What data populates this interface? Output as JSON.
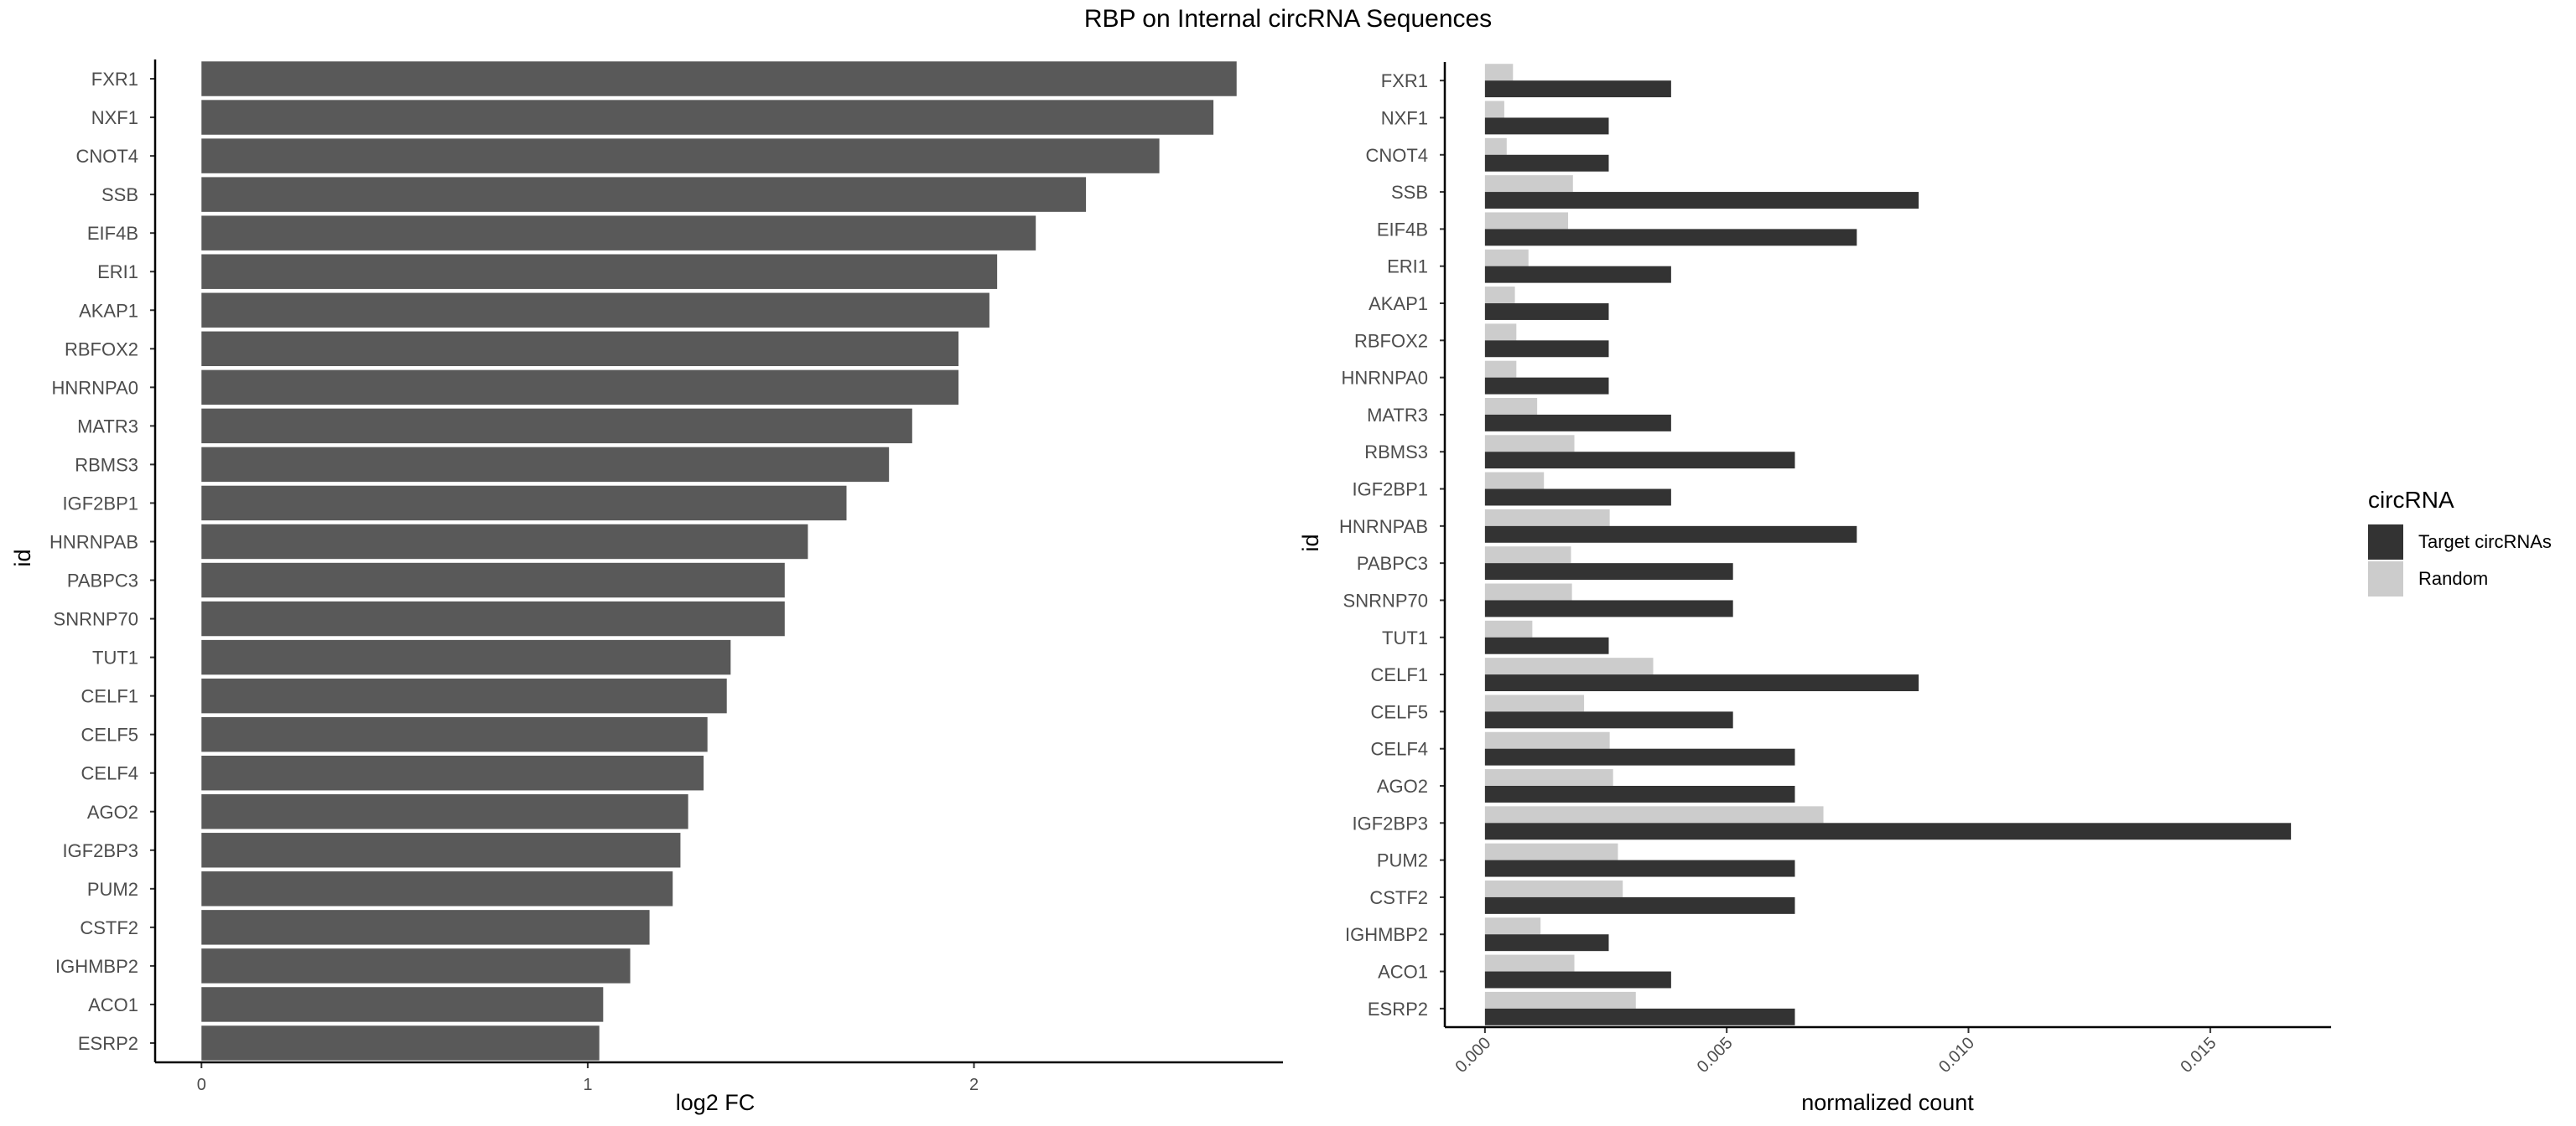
{
  "title": "RBP on Internal circRNA Sequences",
  "chart_data": [
    {
      "type": "bar",
      "orientation": "horizontal",
      "categories": [
        "FXR1",
        "NXF1",
        "CNOT4",
        "SSB",
        "EIF4B",
        "ERI1",
        "AKAP1",
        "RBFOX2",
        "HNRNPA0",
        "MATR3",
        "RBMS3",
        "IGF2BP1",
        "HNRNPAB",
        "PABPC3",
        "SNRNP70",
        "TUT1",
        "CELF1",
        "CELF5",
        "CELF4",
        "AGO2",
        "IGF2BP3",
        "PUM2",
        "CSTF2",
        "IGHMBP2",
        "ACO1",
        "ESRP2"
      ],
      "values": [
        2.68,
        2.62,
        2.48,
        2.29,
        2.16,
        2.06,
        2.04,
        1.96,
        1.96,
        1.84,
        1.78,
        1.67,
        1.57,
        1.51,
        1.51,
        1.37,
        1.36,
        1.31,
        1.3,
        1.26,
        1.24,
        1.22,
        1.16,
        1.11,
        1.04,
        1.03
      ],
      "xlabel": "log2 FC",
      "ylabel": "id",
      "xlim": [
        -0.12,
        2.8
      ],
      "xticks": [
        "0",
        "1",
        "2"
      ],
      "color": "#595959"
    },
    {
      "type": "bar",
      "orientation": "horizontal",
      "grouped": true,
      "categories": [
        "FXR1",
        "NXF1",
        "CNOT4",
        "SSB",
        "EIF4B",
        "ERI1",
        "AKAP1",
        "RBFOX2",
        "HNRNPA0",
        "MATR3",
        "RBMS3",
        "IGF2BP1",
        "HNRNPAB",
        "PABPC3",
        "SNRNP70",
        "TUT1",
        "CELF1",
        "CELF5",
        "CELF4",
        "AGO2",
        "IGF2BP3",
        "PUM2",
        "CSTF2",
        "IGHMBP2",
        "ACO1",
        "ESRP2"
      ],
      "series": [
        {
          "name": "Target circRNAs",
          "color": "#333333",
          "values": [
            0.00385,
            0.00256,
            0.00256,
            0.00897,
            0.00769,
            0.00385,
            0.00256,
            0.00256,
            0.00256,
            0.00385,
            0.00641,
            0.00385,
            0.00769,
            0.00513,
            0.00513,
            0.00256,
            0.00897,
            0.00513,
            0.00641,
            0.00641,
            0.01667,
            0.00641,
            0.00641,
            0.00256,
            0.00385,
            0.00641
          ]
        },
        {
          "name": "Random",
          "color": "#cccccc",
          "values": [
            0.00058,
            0.0004,
            0.00045,
            0.00182,
            0.00172,
            0.0009,
            0.00062,
            0.00065,
            0.00065,
            0.00108,
            0.00185,
            0.00122,
            0.00258,
            0.00178,
            0.0018,
            0.00098,
            0.00348,
            0.00205,
            0.00258,
            0.00265,
            0.007,
            0.00275,
            0.00285,
            0.00115,
            0.00185,
            0.00312
          ]
        }
      ],
      "xlabel": "normalized count",
      "ylabel": "id",
      "xlim": [
        -0.00083,
        0.0175
      ],
      "xticks": [
        "0.000",
        "0.005",
        "0.010",
        "0.015"
      ],
      "legend": {
        "title": "circRNA",
        "placement": "right"
      }
    }
  ]
}
